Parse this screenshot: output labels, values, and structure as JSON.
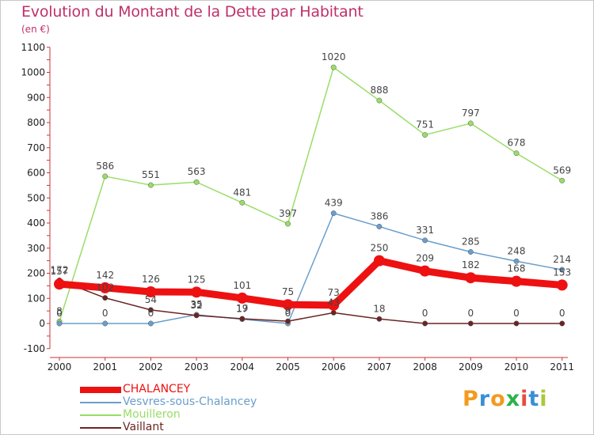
{
  "title": "Evolution du Montant de la Dette par Habitant",
  "unit": "(en €)",
  "logo": {
    "letters": [
      "P",
      "r",
      "o",
      "x",
      "i",
      "t",
      "i"
    ],
    "colors": [
      "#f39a1e",
      "#3a8fd4",
      "#f39a1e",
      "#2bb34a",
      "#e84c3d",
      "#3a8fd4",
      "#a9c93a"
    ]
  },
  "chart_data": {
    "type": "line",
    "categories": [
      "2000",
      "2001",
      "2002",
      "2003",
      "2004",
      "2005",
      "2006",
      "2007",
      "2008",
      "2009",
      "2010",
      "2011"
    ],
    "ylim": [
      -100,
      1100
    ],
    "yticks": [
      -100,
      0,
      100,
      200,
      300,
      400,
      500,
      600,
      700,
      800,
      900,
      1000,
      1100
    ],
    "grid": false,
    "legend_position": "bottom-left",
    "series": [
      {
        "name": "CHALANCEY",
        "color": "#ee1111",
        "values": [
          157,
          142,
          126,
          125,
          101,
          75,
          73,
          250,
          209,
          182,
          168,
          153
        ]
      },
      {
        "name": "Vesvres-sous-Chalancey",
        "color": "#6a9ecb",
        "values": [
          0,
          0,
          0,
          35,
          17,
          0,
          439,
          386,
          331,
          285,
          248,
          214
        ]
      },
      {
        "name": "Mouilleron",
        "color": "#99dd66",
        "values": [
          8,
          586,
          551,
          563,
          481,
          397,
          1020,
          888,
          751,
          797,
          678,
          569
        ]
      },
      {
        "name": "Vaillant",
        "color": "#6b2424",
        "values": [
          172,
          102,
          54,
          32,
          19,
          9,
          43,
          18,
          0,
          0,
          0,
          0
        ]
      }
    ]
  }
}
